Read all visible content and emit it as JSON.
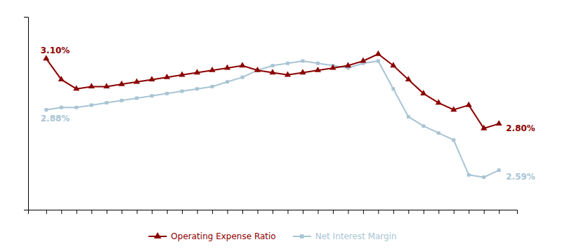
{
  "chart_data": {
    "type": "line",
    "categories": [
      null,
      null,
      null,
      null,
      null,
      null,
      null,
      null,
      null,
      null,
      null,
      null,
      null,
      null,
      null,
      null,
      null,
      null,
      null,
      null,
      null,
      null,
      null,
      null,
      null,
      null,
      null,
      null,
      null,
      null,
      null
    ],
    "series": [
      {
        "name": "Operating Expense Ratio",
        "color": "#8B0000",
        "marker": "triangle",
        "values": [
          3.1,
          3.01,
          2.97,
          2.98,
          2.98,
          2.99,
          3.0,
          3.01,
          3.02,
          3.03,
          3.04,
          3.05,
          3.06,
          3.07,
          3.05,
          3.04,
          3.03,
          3.04,
          3.05,
          3.06,
          3.07,
          3.09,
          3.12,
          3.07,
          3.01,
          2.95,
          2.91,
          2.88,
          2.9,
          2.8,
          2.82
        ]
      },
      {
        "name": "Net Interest Margin",
        "color": "#A8C4D4",
        "marker": "square",
        "values": [
          2.88,
          2.89,
          2.89,
          2.9,
          2.91,
          2.92,
          2.93,
          2.94,
          2.95,
          2.96,
          2.97,
          2.98,
          3.0,
          3.02,
          3.05,
          3.07,
          3.08,
          3.09,
          3.08,
          3.07,
          3.06,
          3.08,
          3.09,
          2.97,
          2.85,
          2.81,
          2.78,
          2.75,
          2.6,
          2.59,
          2.62
        ]
      }
    ],
    "annotations": [
      {
        "text": "3.10%",
        "x": 0,
        "y": 3.1
      },
      {
        "text": "2.88%",
        "x": 0,
        "y": 2.88
      },
      {
        "text": "2.80%",
        "x": 29,
        "y": 2.8
      },
      {
        "text": "2.59%",
        "x": 29,
        "y": 2.59
      }
    ],
    "ylim": [
      2.45,
      3.28
    ],
    "yticks": [],
    "tick_labels": false,
    "grid": false,
    "legend": "bottom"
  }
}
